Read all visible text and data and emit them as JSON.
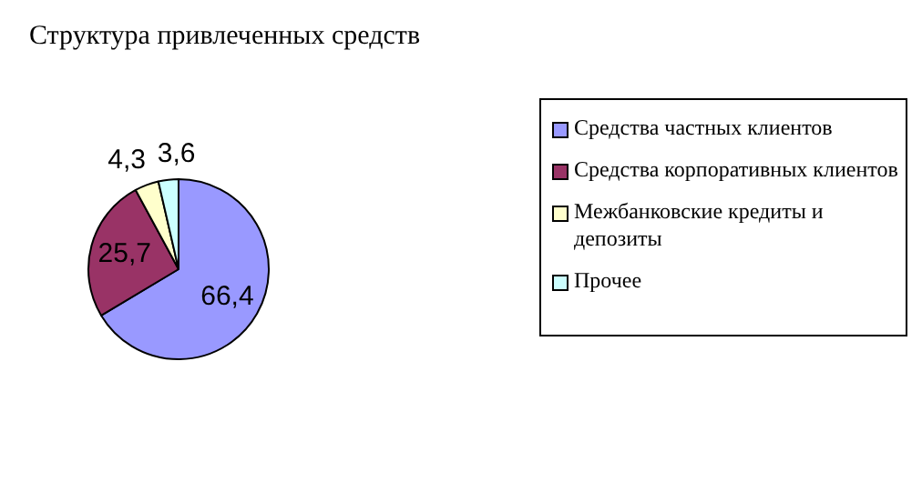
{
  "chart_data": {
    "type": "pie",
    "title": "Структура привлеченных средств",
    "categories": [
      "Средства частных клиентов",
      "Средства корпоративных клиентов",
      "Межбанковские кредиты и депозиты",
      "Прочее"
    ],
    "values": [
      66.4,
      25.7,
      4.3,
      3.6
    ],
    "value_labels": [
      "66,4",
      "25,7",
      "4,3",
      "3,6"
    ],
    "colors": [
      "#9999ff",
      "#993366",
      "#ffffcc",
      "#ccffff"
    ],
    "legend": "right"
  }
}
